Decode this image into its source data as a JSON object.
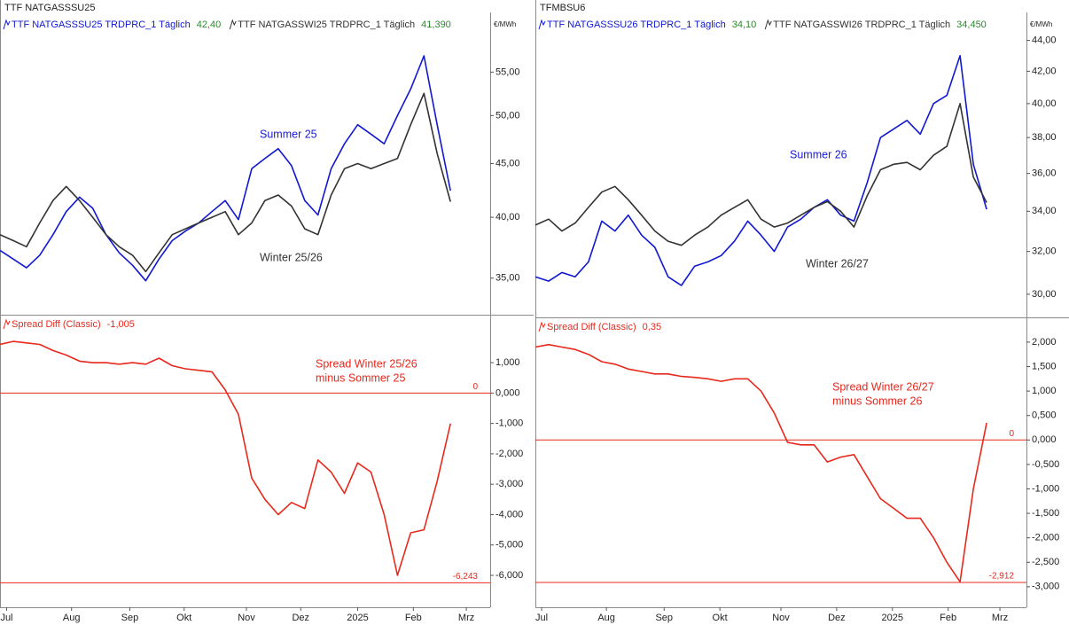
{
  "chart_data": [
    {
      "type": "line",
      "title": "TTF NATGASSSU25",
      "y_unit": "€/MWh",
      "log": true,
      "xlim": [
        0,
        37
      ],
      "ylim": [
        32.3,
        62.7
      ],
      "yticks": [
        {
          "value": 35,
          "label": "35,00"
        },
        {
          "value": 40,
          "label": "40,00"
        },
        {
          "value": 45,
          "label": "45,00"
        },
        {
          "value": 50,
          "label": "50,00"
        },
        {
          "value": 55,
          "label": "55,00"
        }
      ],
      "series": [
        {
          "name": "TTF NATGASSSU25 TRDPRC_1 Täglich",
          "color": "#1018d0",
          "last_value_label": "42,40",
          "values": [
            37.2,
            36.5,
            35.8,
            36.8,
            38.5,
            40.5,
            41.8,
            40.8,
            38.5,
            37.0,
            36.0,
            34.8,
            36.5,
            38.0,
            38.8,
            39.5,
            40.5,
            41.5,
            39.8,
            44.5,
            45.5,
            46.5,
            44.8,
            41.5,
            40.2,
            44.5,
            47.0,
            49.0,
            48.0,
            47.0,
            50.0,
            53.0,
            57.0,
            49.0,
            42.4
          ]
        },
        {
          "name": "TTF NATGASSWI25 TRDPRC_1 Täglich",
          "color": "#333333",
          "last_value_label": "41,390",
          "values": [
            38.5,
            38.0,
            37.5,
            39.5,
            41.5,
            42.8,
            41.5,
            40.0,
            38.5,
            37.5,
            36.8,
            35.5,
            37.0,
            38.5,
            39.0,
            39.5,
            40.0,
            40.5,
            38.5,
            39.5,
            41.5,
            42.0,
            41.0,
            39.0,
            38.5,
            42.0,
            44.5,
            45.0,
            44.5,
            45.0,
            45.5,
            49.0,
            52.5,
            46.0,
            41.39
          ]
        }
      ],
      "annotations": [
        {
          "text": [
            "Summer 25"
          ],
          "color": "#1a1ad8"
        },
        {
          "text": [
            "Winter 25/26"
          ],
          "color": "#333333"
        }
      ]
    },
    {
      "type": "line",
      "xlim": [
        0,
        37
      ],
      "ylim": [
        -7.05,
        2.52
      ],
      "xticks": [
        {
          "value": 0.5,
          "label": "Jul"
        },
        {
          "value": 5.4,
          "label": "Aug"
        },
        {
          "value": 9.8,
          "label": "Sep"
        },
        {
          "value": 13.9,
          "label": "Okt"
        },
        {
          "value": 18.6,
          "label": "Nov"
        },
        {
          "value": 22.7,
          "label": "Dez"
        },
        {
          "value": 27,
          "label": "2025"
        },
        {
          "value": 31.2,
          "label": "Feb"
        },
        {
          "value": 35.2,
          "label": "Mrz"
        }
      ],
      "yticks": [
        {
          "value": -6,
          "label": "-6,000"
        },
        {
          "value": -5,
          "label": "-5,000"
        },
        {
          "value": -4,
          "label": "-4,000"
        },
        {
          "value": -3,
          "label": "-3,000"
        },
        {
          "value": -2,
          "label": "-2,000"
        },
        {
          "value": -1,
          "label": "-1,000"
        },
        {
          "value": 0,
          "label": "0,000"
        },
        {
          "value": 1,
          "label": "1,000"
        }
      ],
      "series": [
        {
          "name": "Spread Diff (Classic)",
          "color": "#e8281c",
          "last_value_label": "-1,005",
          "values": [
            1.6,
            1.7,
            1.65,
            1.6,
            1.4,
            1.25,
            1.05,
            1.0,
            1.0,
            0.95,
            1.0,
            0.95,
            1.15,
            0.9,
            0.8,
            0.75,
            0.7,
            0.1,
            -0.7,
            -2.8,
            -3.5,
            -4.0,
            -3.6,
            -3.8,
            -2.2,
            -2.6,
            -3.3,
            -2.3,
            -2.6,
            -4.0,
            -6.0,
            -4.6,
            -4.5,
            -2.9,
            -1.005
          ]
        }
      ],
      "levels": [
        {
          "value": 0,
          "label": "0"
        },
        {
          "value": -6.243,
          "label": "-6,243"
        }
      ],
      "annotations": [
        {
          "text": [
            "Spread Winter 25/26",
            "minus Sommer 25"
          ],
          "color": "#e8281c"
        }
      ]
    },
    {
      "type": "line",
      "title": "TFMBSU6",
      "y_unit": "€/MWh",
      "log": true,
      "xlim": [
        0,
        37
      ],
      "ylim": [
        28.97,
        45.9
      ],
      "yticks": [
        {
          "value": 30,
          "label": "30,00"
        },
        {
          "value": 32,
          "label": "32,00"
        },
        {
          "value": 34,
          "label": "34,00"
        },
        {
          "value": 36,
          "label": "36,00"
        },
        {
          "value": 38,
          "label": "38,00"
        },
        {
          "value": 40,
          "label": "40,00"
        },
        {
          "value": 42,
          "label": "42,00"
        },
        {
          "value": 44,
          "label": "44,00"
        }
      ],
      "series": [
        {
          "name": "TTF NATGASSSU26 TRDPRC_1 Täglich",
          "color": "#1018d0",
          "last_value_label": "34,10",
          "values": [
            30.8,
            30.6,
            31.0,
            30.8,
            31.5,
            33.5,
            33.0,
            33.8,
            32.8,
            32.2,
            30.8,
            30.4,
            31.3,
            31.5,
            31.8,
            32.5,
            33.5,
            32.8,
            32.0,
            33.2,
            33.6,
            34.2,
            34.6,
            33.8,
            33.5,
            35.5,
            38.0,
            38.5,
            39.0,
            38.2,
            40.0,
            40.5,
            43.0,
            36.5,
            34.1
          ]
        },
        {
          "name": "TTF NATGASSWI26 TRDPRC_1 Täglich",
          "color": "#333333",
          "last_value_label": "34,450",
          "values": [
            33.3,
            33.6,
            33.0,
            33.4,
            34.2,
            35.0,
            35.3,
            34.6,
            33.8,
            33.0,
            32.5,
            32.3,
            32.8,
            33.2,
            33.8,
            34.2,
            34.6,
            33.6,
            33.2,
            33.4,
            33.8,
            34.2,
            34.5,
            34.0,
            33.2,
            34.8,
            36.2,
            36.5,
            36.6,
            36.2,
            37.0,
            37.5,
            40.0,
            35.8,
            34.45
          ]
        }
      ],
      "annotations": [
        {
          "text": [
            "Summer 26"
          ],
          "color": "#1a1ad8"
        },
        {
          "text": [
            "Winter 26/27"
          ],
          "color": "#333333"
        }
      ]
    },
    {
      "type": "line",
      "xlim": [
        0,
        37
      ],
      "ylim": [
        -3.42,
        2.47
      ],
      "xticks": [
        {
          "value": 0.47,
          "label": "Jul"
        },
        {
          "value": 5.35,
          "label": "Aug"
        },
        {
          "value": 9.7,
          "label": "Sep"
        },
        {
          "value": 13.9,
          "label": "Okt"
        },
        {
          "value": 18.5,
          "label": "Nov"
        },
        {
          "value": 22.7,
          "label": "Dez"
        },
        {
          "value": 26.9,
          "label": "2025"
        },
        {
          "value": 31.1,
          "label": "Feb"
        },
        {
          "value": 35.0,
          "label": "Mrz"
        }
      ],
      "yticks": [
        {
          "value": -3,
          "label": "-3,000"
        },
        {
          "value": -2.5,
          "label": "-2,500"
        },
        {
          "value": -2,
          "label": "-2,000"
        },
        {
          "value": -1.5,
          "label": "-1,500"
        },
        {
          "value": -1,
          "label": "-1,000"
        },
        {
          "value": -0.5,
          "label": "-0,500"
        },
        {
          "value": 0,
          "label": "0,000"
        },
        {
          "value": 0.5,
          "label": "0,500"
        },
        {
          "value": 1,
          "label": "1,000"
        },
        {
          "value": 1.5,
          "label": "1,500"
        },
        {
          "value": 2,
          "label": "2,000"
        }
      ],
      "series": [
        {
          "name": "Spread Diff (Classic)",
          "color": "#e8281c",
          "last_value_label": "0,35",
          "values": [
            1.9,
            1.95,
            1.9,
            1.85,
            1.75,
            1.6,
            1.55,
            1.45,
            1.4,
            1.35,
            1.35,
            1.3,
            1.28,
            1.25,
            1.2,
            1.25,
            1.25,
            1.0,
            0.55,
            -0.05,
            -0.1,
            -0.1,
            -0.45,
            -0.35,
            -0.3,
            -0.75,
            -1.2,
            -1.4,
            -1.6,
            -1.6,
            -2.0,
            -2.5,
            -2.9,
            -1.0,
            0.35
          ]
        }
      ],
      "levels": [
        {
          "value": 0,
          "label": "0"
        },
        {
          "value": -2.912,
          "label": "-2,912"
        }
      ],
      "annotations": [
        {
          "text": [
            "Spread Winter 26/27",
            "minus Sommer 26"
          ],
          "color": "#e8281c"
        }
      ]
    }
  ]
}
